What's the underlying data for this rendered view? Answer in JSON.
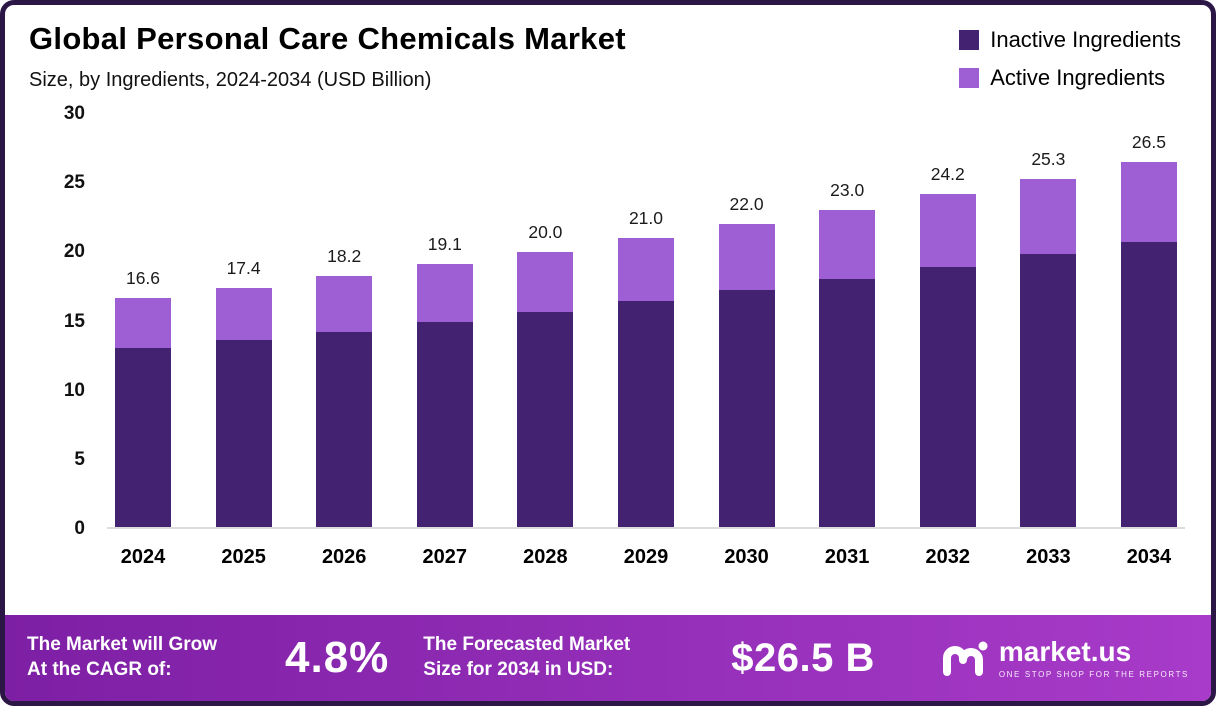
{
  "header": {
    "title": "Global Personal Care Chemicals Market",
    "subtitle": "Size, by Ingredients, 2024-2034 (USD Billion)"
  },
  "legend": [
    {
      "label": "Inactive Ingredients",
      "color": "#432371"
    },
    {
      "label": "Active Ingredients",
      "color": "#9D5FD3"
    }
  ],
  "chart_data": {
    "type": "bar",
    "stacked": true,
    "title": "Global Personal Care Chemicals Market",
    "subtitle": "Size, by Ingredients, 2024-2034 (USD Billion)",
    "unit": "USD Billion",
    "categories": [
      "2024",
      "2025",
      "2026",
      "2027",
      "2028",
      "2029",
      "2030",
      "2031",
      "2032",
      "2033",
      "2034"
    ],
    "series": [
      {
        "name": "Inactive Ingredients",
        "color": "#432371",
        "values": [
          13.0,
          13.6,
          14.2,
          14.9,
          15.6,
          16.4,
          17.2,
          18.0,
          18.9,
          19.8,
          20.7
        ]
      },
      {
        "name": "Active Ingredients",
        "color": "#9D5FD3",
        "values": [
          3.6,
          3.8,
          4.0,
          4.2,
          4.4,
          4.6,
          4.8,
          5.0,
          5.3,
          5.5,
          5.8
        ]
      }
    ],
    "totals": [
      "16.6",
      "17.4",
      "18.2",
      "19.1",
      "20.0",
      "21.0",
      "22.0",
      "23.0",
      "24.2",
      "25.3",
      "26.5"
    ],
    "ylim": [
      0,
      30
    ],
    "yticks": [
      0,
      5,
      10,
      15,
      20,
      25,
      30
    ],
    "grid": false,
    "legend_position": "top-right"
  },
  "footer": {
    "cagr_line1": "The Market will Grow",
    "cagr_line2": "At the CAGR of:",
    "cagr_value": "4.8%",
    "forecast_line1": "The Forecasted Market",
    "forecast_line2": "Size for 2034 in USD:",
    "forecast_value": "$26.5 B",
    "brand": "market.us",
    "tagline": "ONE STOP SHOP FOR THE REPORTS"
  },
  "colors": {
    "frame_border": "#2B1646",
    "footer_gradient_start": "#7D1FA4",
    "footer_gradient_end": "#A83BC9"
  }
}
